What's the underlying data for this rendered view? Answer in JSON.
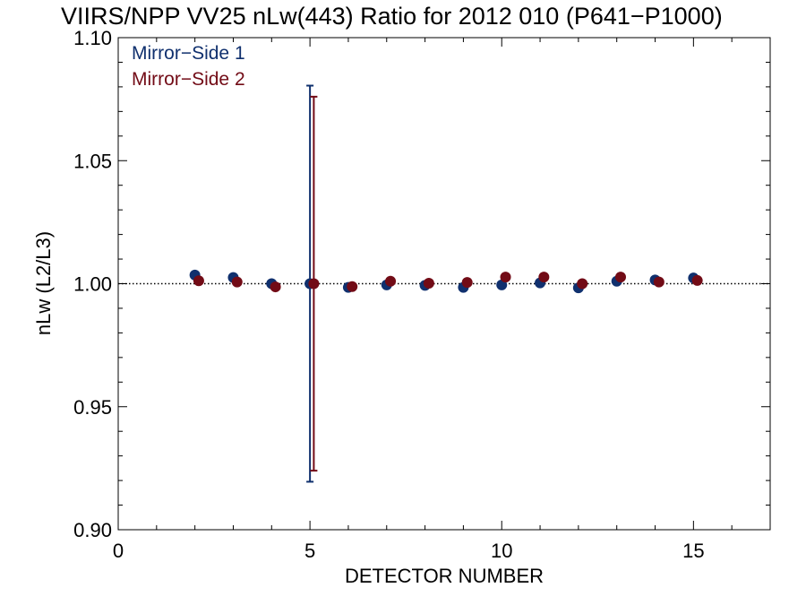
{
  "chart_data": {
    "type": "scatter",
    "title": "VIIRS/NPP VV25 nLw(443) Ratio for 2012 010 (P641−P1000)",
    "xlabel": "DETECTOR NUMBER",
    "ylabel": "nLw (L2/L3)",
    "xlim": [
      0,
      17
    ],
    "ylim": [
      0.9,
      1.1
    ],
    "x_ticks": [
      0,
      5,
      10,
      15
    ],
    "x_tick_labels": [
      "0",
      "5",
      "10",
      "15"
    ],
    "y_ticks": [
      0.9,
      0.95,
      1.0,
      1.05,
      1.1
    ],
    "y_tick_labels": [
      "0.90",
      "0.95",
      "1.00",
      "1.05",
      "1.10"
    ],
    "reference_line": 1.0,
    "legend_position": "top-left",
    "series": [
      {
        "name": "Mirror−Side 1",
        "color": "#10306e",
        "x": [
          2,
          3,
          4,
          5,
          6,
          7,
          8,
          9,
          10,
          11,
          12,
          13,
          14,
          15
        ],
        "y": [
          1.0035,
          1.0025,
          1.0,
          1.0,
          0.9985,
          0.9995,
          0.9993,
          0.9985,
          0.9995,
          1.0003,
          0.9983,
          1.001,
          1.0015,
          1.0023
        ],
        "error_bar": {
          "x": 5,
          "low": 0.9195,
          "high": 1.0805
        }
      },
      {
        "name": "Mirror−Side 2",
        "color": "#720b16",
        "x": [
          2.1,
          3.1,
          4.1,
          5.1,
          6.1,
          7.1,
          8.1,
          9.1,
          10.1,
          11.1,
          12.1,
          13.1,
          14.1,
          15.1
        ],
        "y": [
          1.0012,
          1.0007,
          0.9987,
          1.0,
          0.9988,
          1.001,
          1.0002,
          1.0005,
          1.0027,
          1.0027,
          1.0,
          1.0027,
          1.0007,
          1.0013
        ],
        "error_bar": {
          "x": 5.1,
          "low": 0.924,
          "high": 1.076
        }
      }
    ]
  }
}
